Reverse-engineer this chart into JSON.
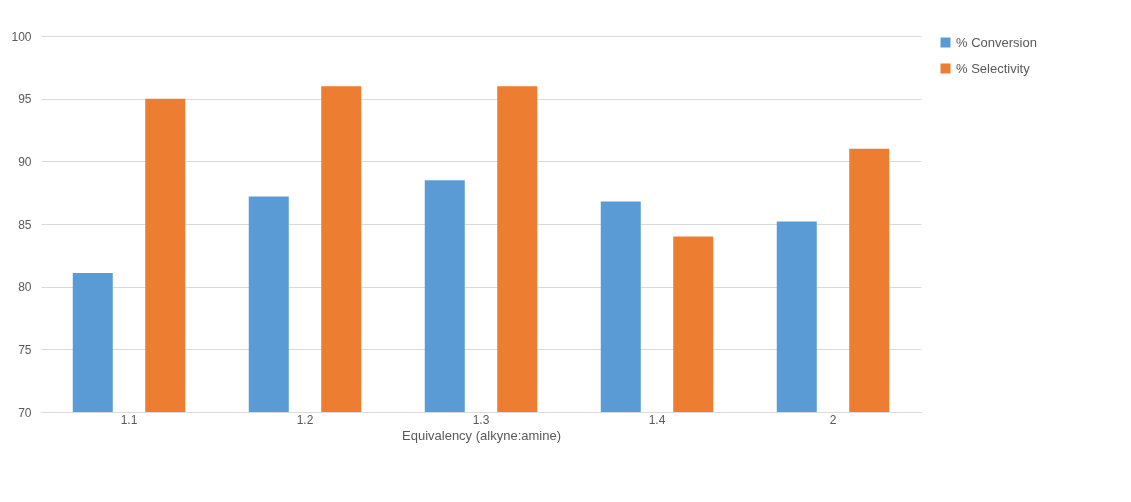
{
  "chart_data": {
    "type": "bar",
    "xlabel": "Equivalency (alkyne:amine)",
    "categories": [
      "1.1",
      "1.2",
      "1.3",
      "1.4",
      "2"
    ],
    "series": [
      {
        "name": "% Conversion",
        "color": "#5b9bd5",
        "values": [
          81.1,
          87.2,
          88.5,
          86.8,
          85.2
        ]
      },
      {
        "name": "% Selectivity",
        "color": "#ed7d31",
        "values": [
          95,
          96,
          96,
          84,
          91
        ]
      }
    ],
    "ylim": [
      70,
      100
    ],
    "yticks": [
      70,
      75,
      80,
      85,
      90,
      95,
      100
    ],
    "grid": "y",
    "legend": "right"
  }
}
